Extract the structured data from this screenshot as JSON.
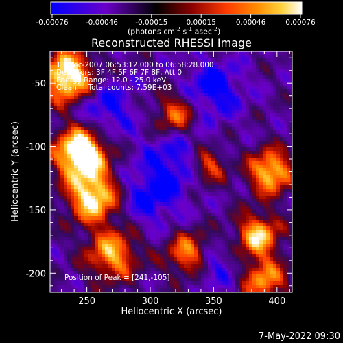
{
  "colorbar": {
    "ticks": [
      "-0.00076",
      "-0.00046",
      "-0.00015",
      "0.00015",
      "0.00046",
      "0.00076"
    ],
    "unit": "(photons cm",
    "unit_exp1": "-2",
    "unit_mid": " s",
    "unit_exp2": "-1",
    "unit_mid2": " asec",
    "unit_exp3": "-2",
    "unit_close": ")",
    "colors": [
      "#0000ff",
      "#6a00c8",
      "#000000",
      "#8b0000",
      "#ff3b00",
      "#ff8c00",
      "#ffd23c",
      "#ffffff"
    ]
  },
  "chart_data": {
    "type": "heatmap",
    "title": "Reconstructed RHESSI Image",
    "xlabel": "Heliocentric X (arcsec)",
    "ylabel": "Heliocentric Y (arcsec)",
    "xlim": [
      221,
      412
    ],
    "ylim": [
      -215,
      -25
    ],
    "xticks": [
      250,
      300,
      350,
      400
    ],
    "yticks": [
      -50,
      -100,
      -150,
      -200
    ],
    "xtick_labels": [
      "250",
      "300",
      "350",
      "400"
    ],
    "ytick_labels": [
      "-50",
      "-100",
      "-150",
      "-200"
    ],
    "annotations": [
      "13-Dec-2007 06:53:12.000 to 06:58:28.000",
      "Detectors: 3F 4F 5F 6F 7F 8F, Att 0",
      "Energy Range: 12.0 - 25.0 keV",
      "Clean     Total counts: 7.59E+03"
    ],
    "peak_label": "Position of Peak = [241,-105]",
    "peak": [
      241,
      -105
    ],
    "vrange": [
      -0.00076,
      0.00076
    ]
  },
  "footer": {
    "timestamp": "7-May-2022 09:30"
  }
}
